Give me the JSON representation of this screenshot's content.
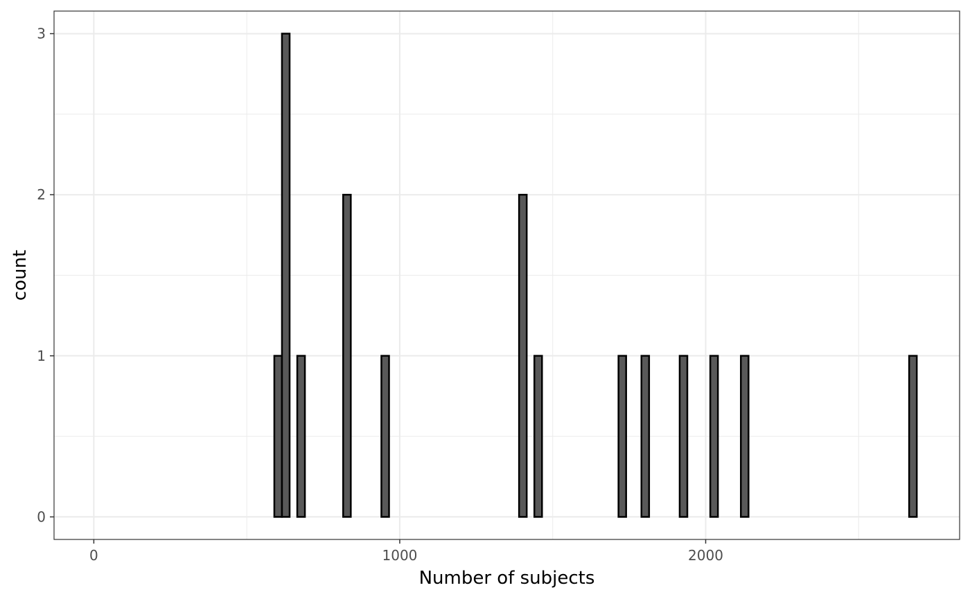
{
  "chart_data": {
    "type": "bar",
    "subtype": "histogram",
    "title": "",
    "xlabel": "Number of subjects",
    "ylabel": "count",
    "xlim": [
      -130,
      2830
    ],
    "ylim": [
      -0.14,
      3.14
    ],
    "x_ticks": [
      0,
      1000,
      2000
    ],
    "x_tick_labels": [
      "0",
      "1000",
      "2000"
    ],
    "y_ticks": [
      0,
      1,
      2,
      3
    ],
    "y_tick_labels": [
      "0",
      "1",
      "2",
      "3"
    ],
    "bin_width": 25,
    "range": [
      15,
      2690
    ],
    "bins": [
      {
        "x": 602,
        "count": 1
      },
      {
        "x": 627,
        "count": 3
      },
      {
        "x": 677,
        "count": 1
      },
      {
        "x": 827,
        "count": 2
      },
      {
        "x": 952,
        "count": 1
      },
      {
        "x": 1402,
        "count": 2
      },
      {
        "x": 1452,
        "count": 1
      },
      {
        "x": 1727,
        "count": 1
      },
      {
        "x": 1802,
        "count": 1
      },
      {
        "x": 1927,
        "count": 1
      },
      {
        "x": 2027,
        "count": 1
      },
      {
        "x": 2127,
        "count": 1
      },
      {
        "x": 2677,
        "count": 1
      }
    ],
    "grid": true,
    "legend": "none",
    "colors": {
      "bar_fill": "#595959",
      "bar_stroke": "#000000",
      "grid": "#ebebeb",
      "panel_border": "#333333"
    }
  }
}
